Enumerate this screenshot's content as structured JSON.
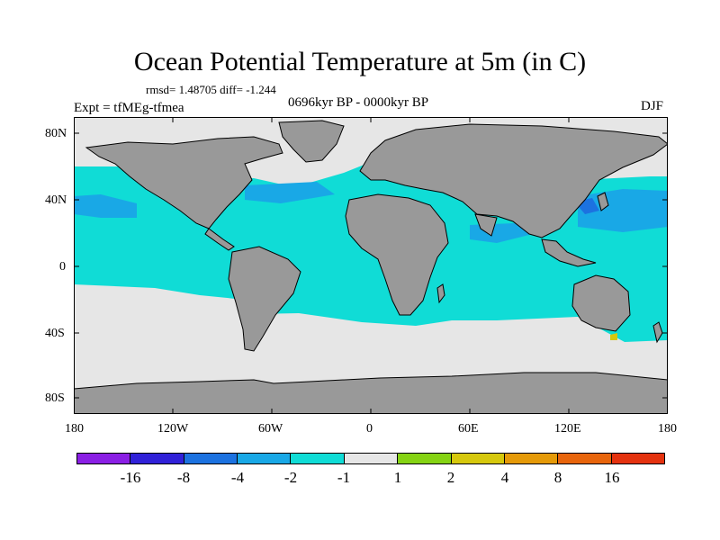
{
  "title": "Ocean Potential Temperature at 5m (in C)",
  "stats_text": "rmsd= 1.48705 diff= -1.244",
  "experiment_text": "Expt = tfMEg-tfmea",
  "period_text": "0696kyr BP - 0000kyr BP",
  "season_text": "DJF",
  "lat_labels": [
    "80N",
    "40N",
    "0",
    "40S",
    "80S"
  ],
  "lon_labels": [
    "180",
    "120W",
    "60W",
    "0",
    "60E",
    "120E",
    "180"
  ],
  "colorbar": {
    "colors": [
      "#8a1fe4",
      "#3021d8",
      "#1c72e0",
      "#19a8e6",
      "#10dcd6",
      "#e6e6e6",
      "#85d313",
      "#d6c80d",
      "#e59a09",
      "#e8650c",
      "#e4320f"
    ],
    "labels": [
      "-16",
      "-8",
      "-4",
      "-2",
      "-1",
      "1",
      "2",
      "4",
      "8",
      "16"
    ]
  },
  "map_colors": {
    "land": "#999999",
    "neutral": "#e6e6e6",
    "cool1": "#10dcd6",
    "cool2": "#19a8e6",
    "cool3": "#1c72e0",
    "warm1": "#85d313",
    "warm2": "#d6c80d"
  }
}
